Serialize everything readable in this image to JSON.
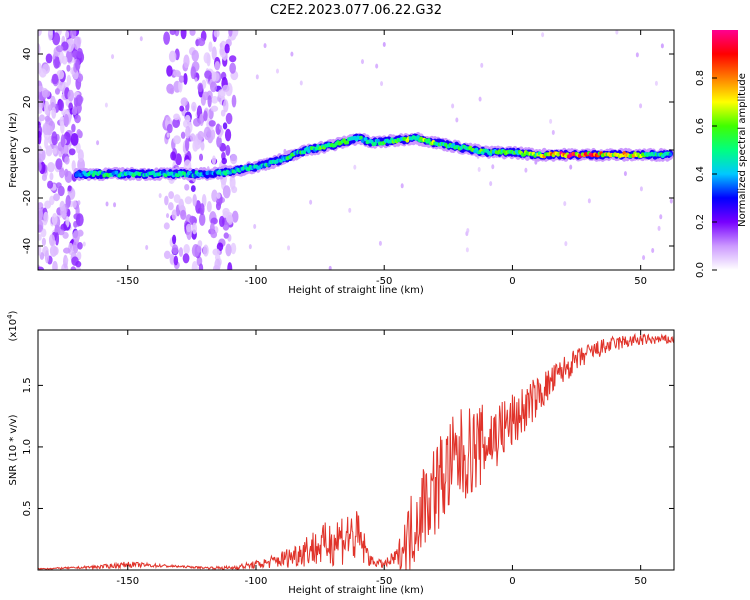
{
  "title": "C2E2.2023.077.06.22.G32",
  "chart_data": [
    {
      "type": "heatmap",
      "xlabel": "Height of straight line (km)",
      "ylabel": "Frequency (Hz)",
      "xlim": [
        -185,
        63
      ],
      "ylim": [
        -50,
        50
      ],
      "xticks": [
        -150,
        -100,
        -50,
        0,
        50
      ],
      "yticks": [
        -40,
        -20,
        0,
        20,
        40
      ],
      "colorbar": {
        "label": "Normalized spectral amplitude",
        "range": [
          0,
          1
        ],
        "ticks": [
          0.0,
          0.2,
          0.4,
          0.6,
          0.8
        ],
        "colors": [
          "#ffffff",
          "#cc99ff",
          "#7700ff",
          "#0000ff",
          "#00c8ff",
          "#00ff80",
          "#40ff00",
          "#ffff00",
          "#ff7f00",
          "#ff0000",
          "#ff0090"
        ]
      },
      "signal_trace": {
        "x": [
          -170,
          -150,
          -130,
          -120,
          -110,
          -100,
          -90,
          -80,
          -70,
          -60,
          -55,
          -45,
          -38,
          -30,
          -20,
          -10,
          0,
          10,
          20,
          40,
          62
        ],
        "y": [
          -10,
          -10,
          -10,
          -10,
          -9,
          -7,
          -4,
          0,
          2,
          5,
          3,
          4,
          5,
          3,
          1,
          -1,
          -1,
          -2,
          -2,
          -2,
          -2
        ],
        "amplitude": [
          0.45,
          0.5,
          0.45,
          0.4,
          0.45,
          0.45,
          0.5,
          0.5,
          0.55,
          0.5,
          0.5,
          0.55,
          0.6,
          0.6,
          0.55,
          0.55,
          0.55,
          0.6,
          0.9,
          0.75,
          0.45
        ]
      },
      "noise_bands_x": [
        [
          -185,
          -168
        ],
        [
          -135,
          -108
        ]
      ],
      "grid": false,
      "legend": "none"
    },
    {
      "type": "line",
      "xlabel": "Height of straight line (km)",
      "ylabel": "SNR (10 * v/v)",
      "yscale_label": "(x10",
      "yscale_exp": "4",
      "yscale_close": ")",
      "xlim": [
        -185,
        63
      ],
      "ylim": [
        0,
        1.95
      ],
      "xticks": [
        -150,
        -100,
        -50,
        0,
        50
      ],
      "yticks": [
        0.5,
        1.0,
        1.5
      ],
      "series_color": "#e0332a",
      "series": [
        {
          "x": [
            -185,
            -170,
            -160,
            -150,
            -140,
            -130,
            -120,
            -110,
            -100,
            -95,
            -90,
            -85,
            -80,
            -75,
            -70,
            -65,
            -60,
            -55,
            -50,
            -45,
            -40,
            -35,
            -30,
            -25,
            -20,
            -15,
            -10,
            -5,
            0,
            5,
            10,
            15,
            20,
            25,
            30,
            35,
            40,
            45,
            50,
            55,
            62
          ],
          "y": [
            0.01,
            0.02,
            0.03,
            0.05,
            0.04,
            0.03,
            0.02,
            0.02,
            0.05,
            0.07,
            0.1,
            0.14,
            0.2,
            0.22,
            0.28,
            0.33,
            0.3,
            0.08,
            0.05,
            0.12,
            0.35,
            0.6,
            0.75,
            0.9,
            1.0,
            1.05,
            1.1,
            1.18,
            1.25,
            1.35,
            1.45,
            1.55,
            1.65,
            1.72,
            1.78,
            1.82,
            1.85,
            1.87,
            1.88,
            1.88,
            1.88
          ],
          "spike_amplitude": [
            0.005,
            0.01,
            0.02,
            0.03,
            0.02,
            0.01,
            0.01,
            0.02,
            0.04,
            0.06,
            0.09,
            0.12,
            0.18,
            0.2,
            0.26,
            0.3,
            0.28,
            0.05,
            0.04,
            0.1,
            0.4,
            0.45,
            0.5,
            0.5,
            0.5,
            0.45,
            0.4,
            0.35,
            0.3,
            0.25,
            0.2,
            0.17,
            0.14,
            0.12,
            0.1,
            0.09,
            0.08,
            0.07,
            0.06,
            0.05,
            0.05
          ]
        }
      ],
      "grid": false,
      "legend": "none"
    }
  ]
}
